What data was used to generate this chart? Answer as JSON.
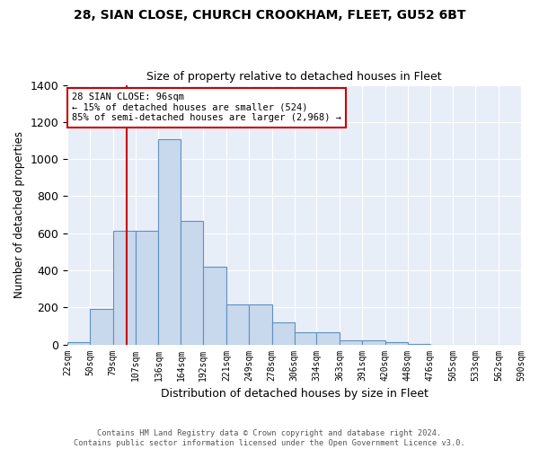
{
  "title_line1": "28, SIAN CLOSE, CHURCH CROOKHAM, FLEET, GU52 6BT",
  "title_line2": "Size of property relative to detached houses in Fleet",
  "xlabel": "Distribution of detached houses by size in Fleet",
  "ylabel": "Number of detached properties",
  "footnote": "Contains HM Land Registry data © Crown copyright and database right 2024.\nContains public sector information licensed under the Open Government Licence v3.0.",
  "bin_edges": [
    22,
    50,
    79,
    107,
    136,
    164,
    192,
    221,
    249,
    278,
    306,
    334,
    363,
    391,
    420,
    448,
    476,
    505,
    533,
    562,
    590
  ],
  "bar_heights": [
    10,
    190,
    615,
    615,
    1105,
    665,
    420,
    215,
    215,
    120,
    65,
    65,
    20,
    20,
    10,
    5,
    0,
    0,
    0,
    0
  ],
  "bar_color": "#c8d8ed",
  "bar_edge_color": "#6090c0",
  "background_color": "#e8eef8",
  "grid_color": "#d0d8e8",
  "vline_x": 96,
  "vline_color": "#cc0000",
  "annotation_text": "28 SIAN CLOSE: 96sqm\n← 15% of detached houses are smaller (524)\n85% of semi-detached houses are larger (2,968) →",
  "annotation_box_color": "#cc0000",
  "ylim": [
    0,
    1400
  ],
  "yticks": [
    0,
    200,
    400,
    600,
    800,
    1000,
    1200,
    1400
  ]
}
